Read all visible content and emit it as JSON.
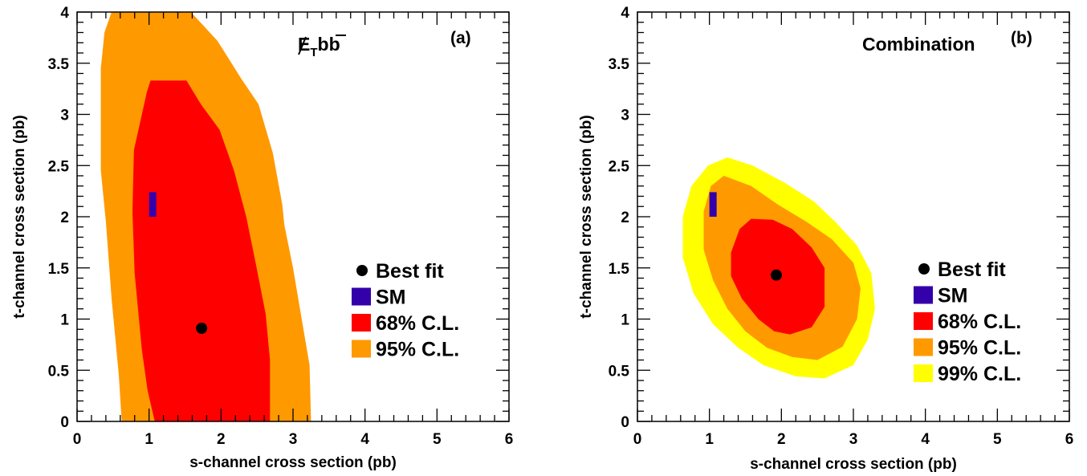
{
  "chart_data": [
    {
      "type": "contour",
      "panel_tag": "(a)",
      "annotation": {
        "main": "E",
        "sub": "T",
        "suffix": "bb"
      },
      "xlabel": "s-channel cross section (pb)",
      "ylabel": "t-channel cross section (pb)",
      "xlim": [
        0,
        6
      ],
      "ylim": [
        0,
        4
      ],
      "xticks": [
        "0",
        "1",
        "2",
        "3",
        "4",
        "5",
        "6"
      ],
      "yticks": [
        "0",
        "0.5",
        "1",
        "1.5",
        "2",
        "2.5",
        "3",
        "3.5",
        "4"
      ],
      "grid": false,
      "legend_position": "right",
      "best_fit": {
        "s": 1.73,
        "t": 0.91
      },
      "sm": {
        "s": 1.05,
        "t_low": 2.0,
        "t_high": 2.24
      },
      "colors": {
        "cl68": "#ff0000",
        "cl95": "#ff9900",
        "best_fit": "#000000",
        "sm": "#3300aa"
      },
      "regions": [
        {
          "label": "95% C.L.",
          "color": "#ff9900",
          "boundary": [
            [
              0.48,
              4.0
            ],
            [
              1.58,
              4.0
            ],
            [
              1.95,
              3.72
            ],
            [
              2.28,
              3.35
            ],
            [
              2.52,
              3.1
            ],
            [
              2.72,
              2.62
            ],
            [
              2.85,
              2.12
            ],
            [
              2.88,
              1.92
            ],
            [
              3.0,
              1.5
            ],
            [
              3.12,
              1.0
            ],
            [
              3.23,
              0.55
            ],
            [
              3.25,
              0.0
            ],
            [
              0.62,
              0.0
            ],
            [
              0.58,
              0.45
            ],
            [
              0.48,
              1.2
            ],
            [
              0.4,
              1.95
            ],
            [
              0.33,
              2.45
            ],
            [
              0.33,
              3.45
            ],
            [
              0.38,
              3.8
            ]
          ]
        },
        {
          "label": "68% C.L.",
          "color": "#ff0000",
          "boundary": [
            [
              0.97,
              3.22
            ],
            [
              1.02,
              3.33
            ],
            [
              1.52,
              3.33
            ],
            [
              1.72,
              3.1
            ],
            [
              1.98,
              2.85
            ],
            [
              2.18,
              2.45
            ],
            [
              2.35,
              2.0
            ],
            [
              2.48,
              1.55
            ],
            [
              2.62,
              1.05
            ],
            [
              2.68,
              0.6
            ],
            [
              2.68,
              0.0
            ],
            [
              1.08,
              0.0
            ],
            [
              0.98,
              0.3
            ],
            [
              0.9,
              0.7
            ],
            [
              0.8,
              1.45
            ],
            [
              0.77,
              2.05
            ],
            [
              0.79,
              2.65
            ]
          ]
        }
      ],
      "legend": [
        {
          "kind": "marker",
          "label": "Best fit"
        },
        {
          "kind": "box",
          "label": "SM",
          "color": "#3300aa"
        },
        {
          "kind": "box",
          "label": "68% C.L.",
          "color": "#ff0000"
        },
        {
          "kind": "box",
          "label": "95% C.L.",
          "color": "#ff9900"
        }
      ]
    },
    {
      "type": "contour",
      "panel_tag": "(b)",
      "annotation": {
        "text": "Combination"
      },
      "xlabel": "s-channel cross section (pb)",
      "ylabel": "t-channel cross section (pb)",
      "xlim": [
        0,
        6
      ],
      "ylim": [
        0,
        4
      ],
      "xticks": [
        "0",
        "1",
        "2",
        "3",
        "4",
        "5",
        "6"
      ],
      "yticks": [
        "0",
        "0.5",
        "1",
        "1.5",
        "2",
        "2.5",
        "3",
        "3.5",
        "4"
      ],
      "grid": false,
      "legend_position": "right",
      "best_fit": {
        "s": 1.93,
        "t": 1.43
      },
      "sm": {
        "s": 1.05,
        "t_low": 2.0,
        "t_high": 2.24
      },
      "colors": {
        "cl68": "#ff0000",
        "cl95": "#ff9900",
        "cl99": "#ffff00",
        "best_fit": "#000000",
        "sm": "#3300aa"
      },
      "regions": [
        {
          "label": "99% C.L.",
          "color": "#ffff00",
          "boundary": [
            [
              1.25,
              2.58
            ],
            [
              1.6,
              2.5
            ],
            [
              2.05,
              2.33
            ],
            [
              2.45,
              2.15
            ],
            [
              2.75,
              1.95
            ],
            [
              3.05,
              1.72
            ],
            [
              3.25,
              1.45
            ],
            [
              3.3,
              1.1
            ],
            [
              3.2,
              0.8
            ],
            [
              3.0,
              0.55
            ],
            [
              2.6,
              0.42
            ],
            [
              2.2,
              0.44
            ],
            [
              1.75,
              0.55
            ],
            [
              1.4,
              0.72
            ],
            [
              1.05,
              0.95
            ],
            [
              0.78,
              1.25
            ],
            [
              0.63,
              1.6
            ],
            [
              0.63,
              2.0
            ],
            [
              0.75,
              2.3
            ],
            [
              0.98,
              2.5
            ]
          ]
        },
        {
          "label": "95% C.L.",
          "color": "#ff9900",
          "boundary": [
            [
              1.2,
              2.4
            ],
            [
              1.58,
              2.3
            ],
            [
              1.95,
              2.12
            ],
            [
              2.35,
              1.95
            ],
            [
              2.7,
              1.78
            ],
            [
              3.0,
              1.55
            ],
            [
              3.1,
              1.3
            ],
            [
              3.05,
              1.0
            ],
            [
              2.85,
              0.73
            ],
            [
              2.5,
              0.6
            ],
            [
              2.15,
              0.63
            ],
            [
              1.8,
              0.72
            ],
            [
              1.5,
              0.88
            ],
            [
              1.25,
              1.1
            ],
            [
              1.05,
              1.38
            ],
            [
              0.92,
              1.68
            ],
            [
              0.92,
              2.05
            ],
            [
              1.02,
              2.3
            ]
          ]
        },
        {
          "label": "68% C.L.",
          "color": "#ff0000",
          "boundary": [
            [
              1.58,
              1.98
            ],
            [
              1.88,
              1.97
            ],
            [
              2.15,
              1.88
            ],
            [
              2.42,
              1.7
            ],
            [
              2.6,
              1.5
            ],
            [
              2.6,
              1.12
            ],
            [
              2.42,
              0.92
            ],
            [
              2.12,
              0.85
            ],
            [
              1.9,
              0.88
            ],
            [
              1.68,
              1.0
            ],
            [
              1.45,
              1.2
            ],
            [
              1.3,
              1.42
            ],
            [
              1.3,
              1.65
            ],
            [
              1.42,
              1.88
            ]
          ]
        }
      ],
      "legend": [
        {
          "kind": "marker",
          "label": "Best fit"
        },
        {
          "kind": "box",
          "label": "SM",
          "color": "#3300aa"
        },
        {
          "kind": "box",
          "label": "68% C.L.",
          "color": "#ff0000"
        },
        {
          "kind": "box",
          "label": "95% C.L.",
          "color": "#ff9900"
        },
        {
          "kind": "box",
          "label": "99% C.L.",
          "color": "#ffff00"
        }
      ]
    }
  ]
}
